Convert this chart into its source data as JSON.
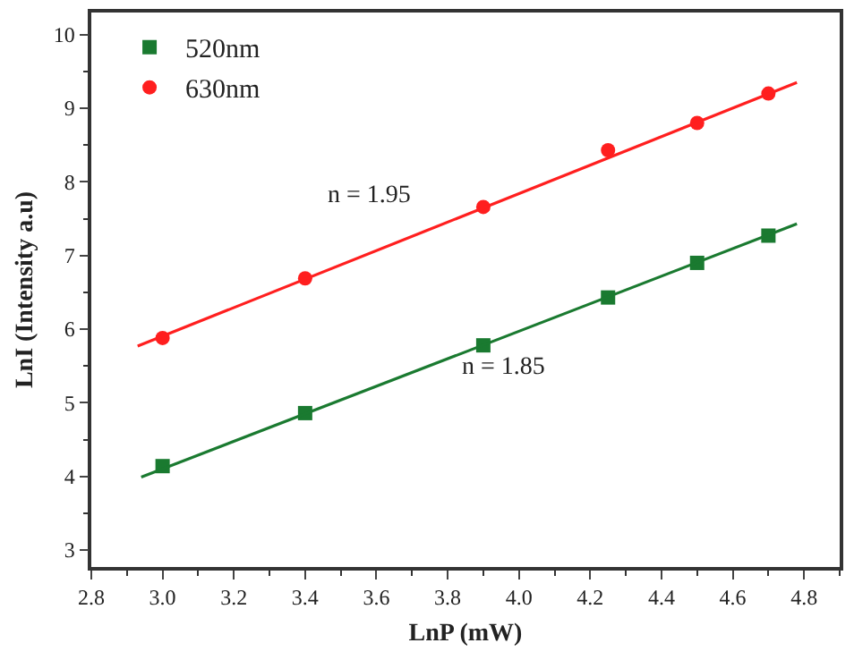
{
  "chart_data": {
    "type": "scatter",
    "xlabel": "LnP (mW)",
    "ylabel": "LnI (Intensity a.u)",
    "xlim": [
      2.8,
      4.9
    ],
    "xticks": [
      {
        "value": 2.8,
        "label": "2.8"
      },
      {
        "value": 3.0,
        "label": "3.0"
      },
      {
        "value": 3.2,
        "label": "3.2"
      },
      {
        "value": 3.4,
        "label": "3.4"
      },
      {
        "value": 3.6,
        "label": "3.6"
      },
      {
        "value": 3.8,
        "label": "3.8"
      },
      {
        "value": 4.0,
        "label": "4.0"
      },
      {
        "value": 4.2,
        "label": "4.2"
      },
      {
        "value": 4.4,
        "label": "4.4"
      },
      {
        "value": 4.6,
        "label": "4.6"
      },
      {
        "value": 4.8,
        "label": "4.8"
      }
    ],
    "ylim": [
      2.77,
      10.3
    ],
    "yticks": [
      3,
      4,
      5,
      6,
      7,
      8,
      9,
      10
    ],
    "x": [
      3.0,
      3.4,
      3.9,
      4.25,
      4.5,
      4.7
    ],
    "series": [
      {
        "name": "520nm",
        "marker": "square",
        "color": "#1a7a30",
        "values": [
          4.14,
          4.86,
          5.78,
          6.43,
          6.9,
          7.27
        ]
      },
      {
        "name": "630nm",
        "marker": "circle",
        "color": "#ff1f1f",
        "values": [
          5.88,
          6.69,
          7.66,
          8.43,
          8.8,
          9.2
        ]
      },
      {
        "type": "line",
        "color": "#1a7a30",
        "x": [
          2.94,
          4.78
        ],
        "values": [
          3.99,
          7.43
        ]
      },
      {
        "type": "line",
        "color": "#ff1f1f",
        "x": [
          2.93,
          4.78
        ],
        "values": [
          5.77,
          9.35
        ]
      }
    ],
    "annotations": [
      "n = 1.95",
      "n = 1.85"
    ],
    "legend": "top left",
    "grid": false
  }
}
